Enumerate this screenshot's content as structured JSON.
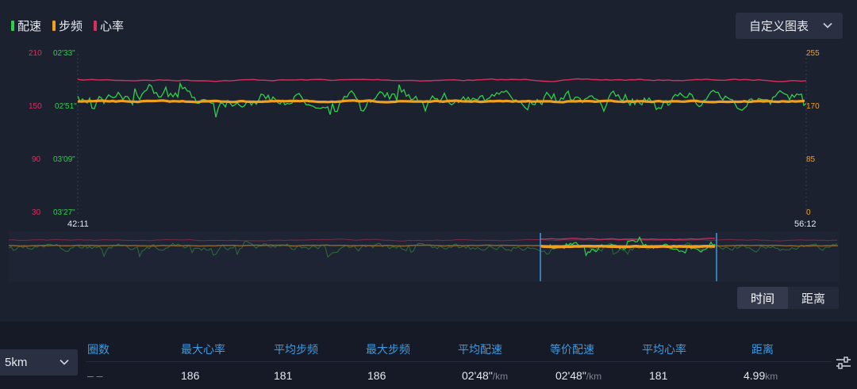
{
  "legend": [
    {
      "label": "配速",
      "color": "#2fcf4a"
    },
    {
      "label": "步频",
      "color": "#f0a020"
    },
    {
      "label": "心率",
      "color": "#d6305f"
    }
  ],
  "custom_chart": {
    "label": "自定义图表",
    "icon": "chevron-down-icon"
  },
  "axes": {
    "hr_ticks": [
      "210",
      "150",
      "90",
      "30"
    ],
    "pace_ticks": [
      "02'33\"",
      "02'51\"",
      "03'09\"",
      "03'27\""
    ],
    "cadence_ticks": [
      "255",
      "170",
      "85",
      "0"
    ],
    "time_start": "42:11",
    "time_end": "56:12"
  },
  "colors": {
    "pace": "#2fcf4a",
    "cadence": "#f0a020",
    "heart_rate": "#d6305f",
    "accent": "#3c9be0"
  },
  "toggle": {
    "time": "时间",
    "distance": "距离",
    "selected": "time"
  },
  "lap_select": {
    "value": "5km",
    "icon": "chevron-down-icon"
  },
  "stats": {
    "headers": [
      "圈数",
      "最大心率",
      "平均步频",
      "最大步频",
      "平均配速",
      "等价配速",
      "平均心率",
      "距离"
    ],
    "laps": "– –",
    "max_hr": "186",
    "avg_cadence": "181",
    "max_cadence": "186",
    "avg_pace": "02'48\"",
    "avg_pace_unit": "/km",
    "eq_pace": "02'48\"",
    "eq_pace_unit": "/km",
    "avg_hr": "181",
    "distance": "4.99",
    "distance_unit": "km"
  },
  "settings_icon": "sliders-icon"
}
